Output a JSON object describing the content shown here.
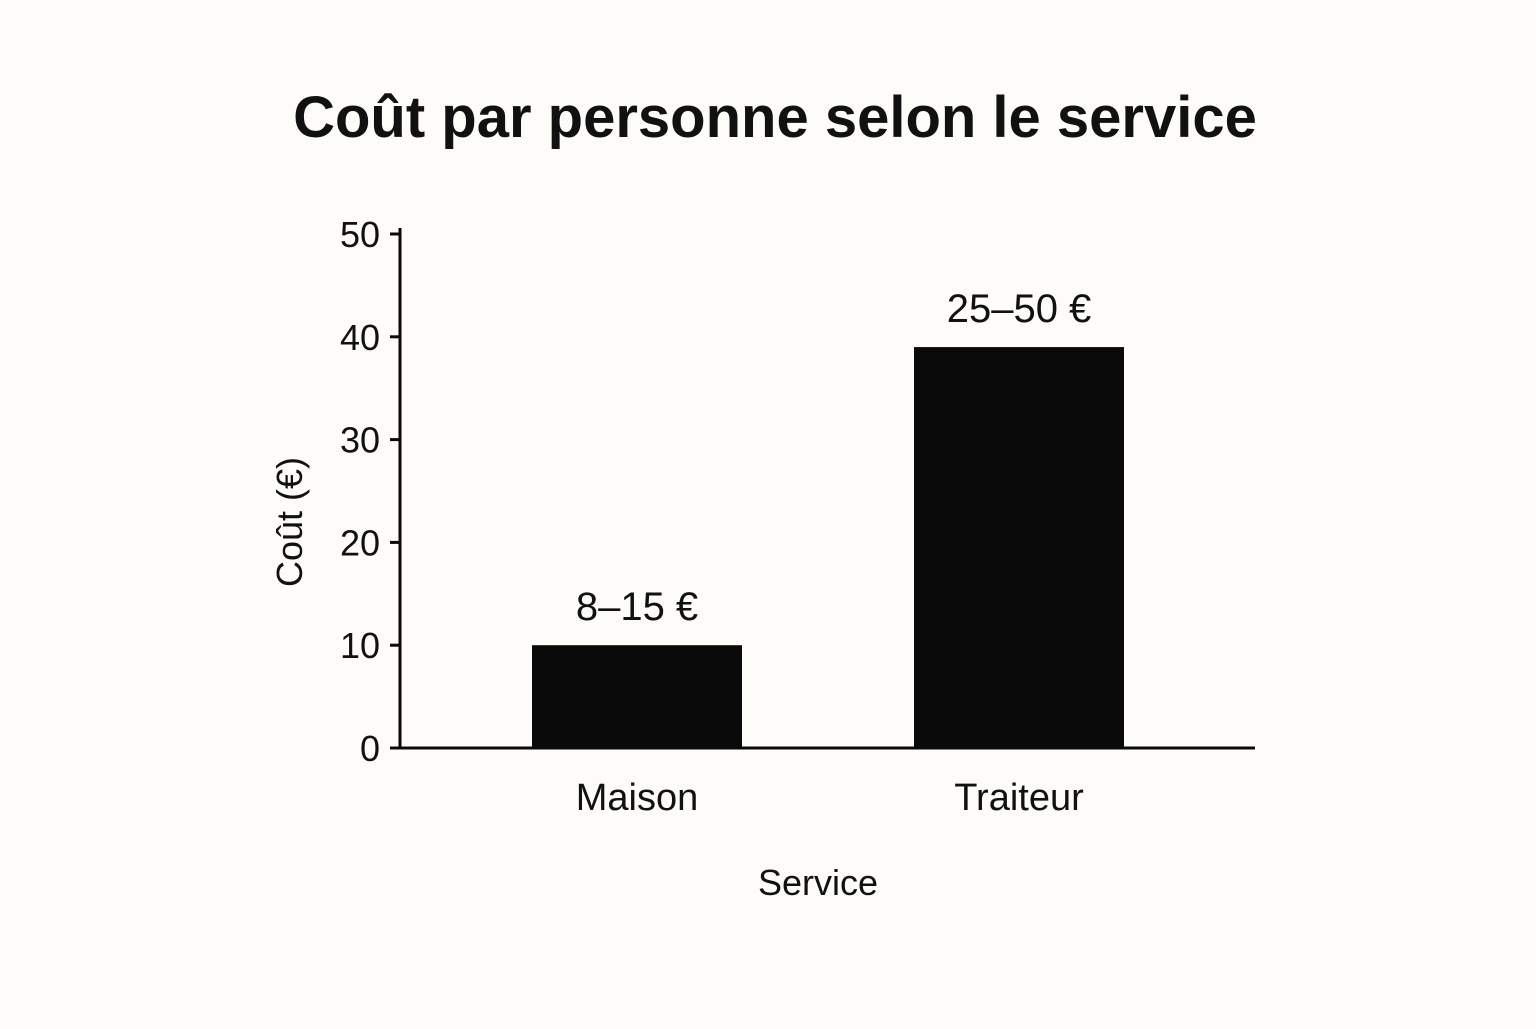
{
  "colors": {
    "background": "#fdfcf8",
    "bar": "#0a0a0a",
    "axis": "#0a0a0a",
    "text": "#111111"
  },
  "chart_data": {
    "type": "bar",
    "title": "Coût par personne selon le service",
    "xlabel": "Service",
    "ylabel": "Coût (€)",
    "ylim": [
      0,
      50
    ],
    "yticks": [
      0,
      10,
      20,
      30,
      40,
      50
    ],
    "grid": false,
    "legend": "none",
    "categories": [
      "Maison",
      "Traiteur"
    ],
    "values": [
      10,
      39
    ],
    "data_labels": [
      "8–15 €",
      "25–50 €"
    ]
  }
}
